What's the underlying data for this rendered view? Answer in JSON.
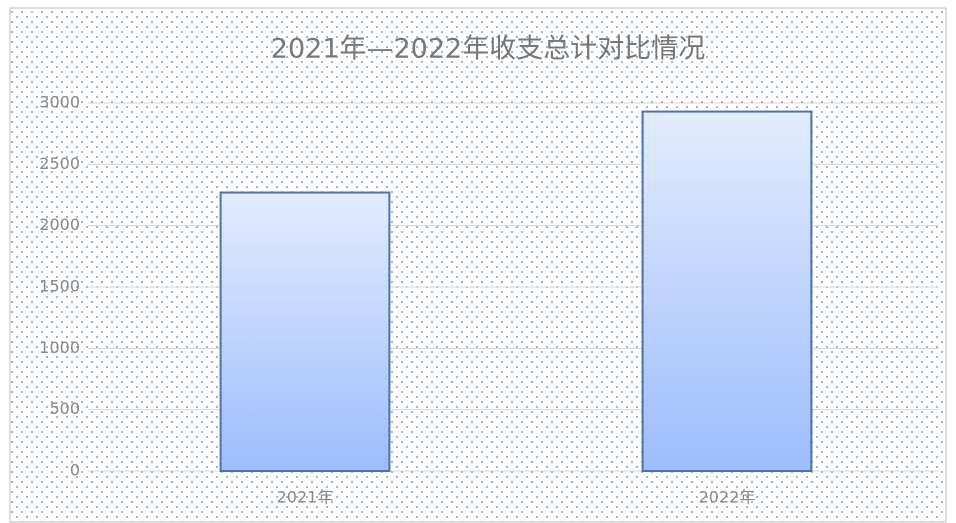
{
  "chart_data": {
    "type": "bar",
    "title": "2021年—2022年收支总计对比情况",
    "categories": [
      "2021年",
      "2022年"
    ],
    "values": [
      2270,
      2930
    ],
    "color": "#9dbdfd",
    "ylim": [
      0,
      3000
    ],
    "yticks": [
      0,
      500,
      1000,
      1500,
      2000,
      2500,
      3000
    ],
    "grid": true
  }
}
